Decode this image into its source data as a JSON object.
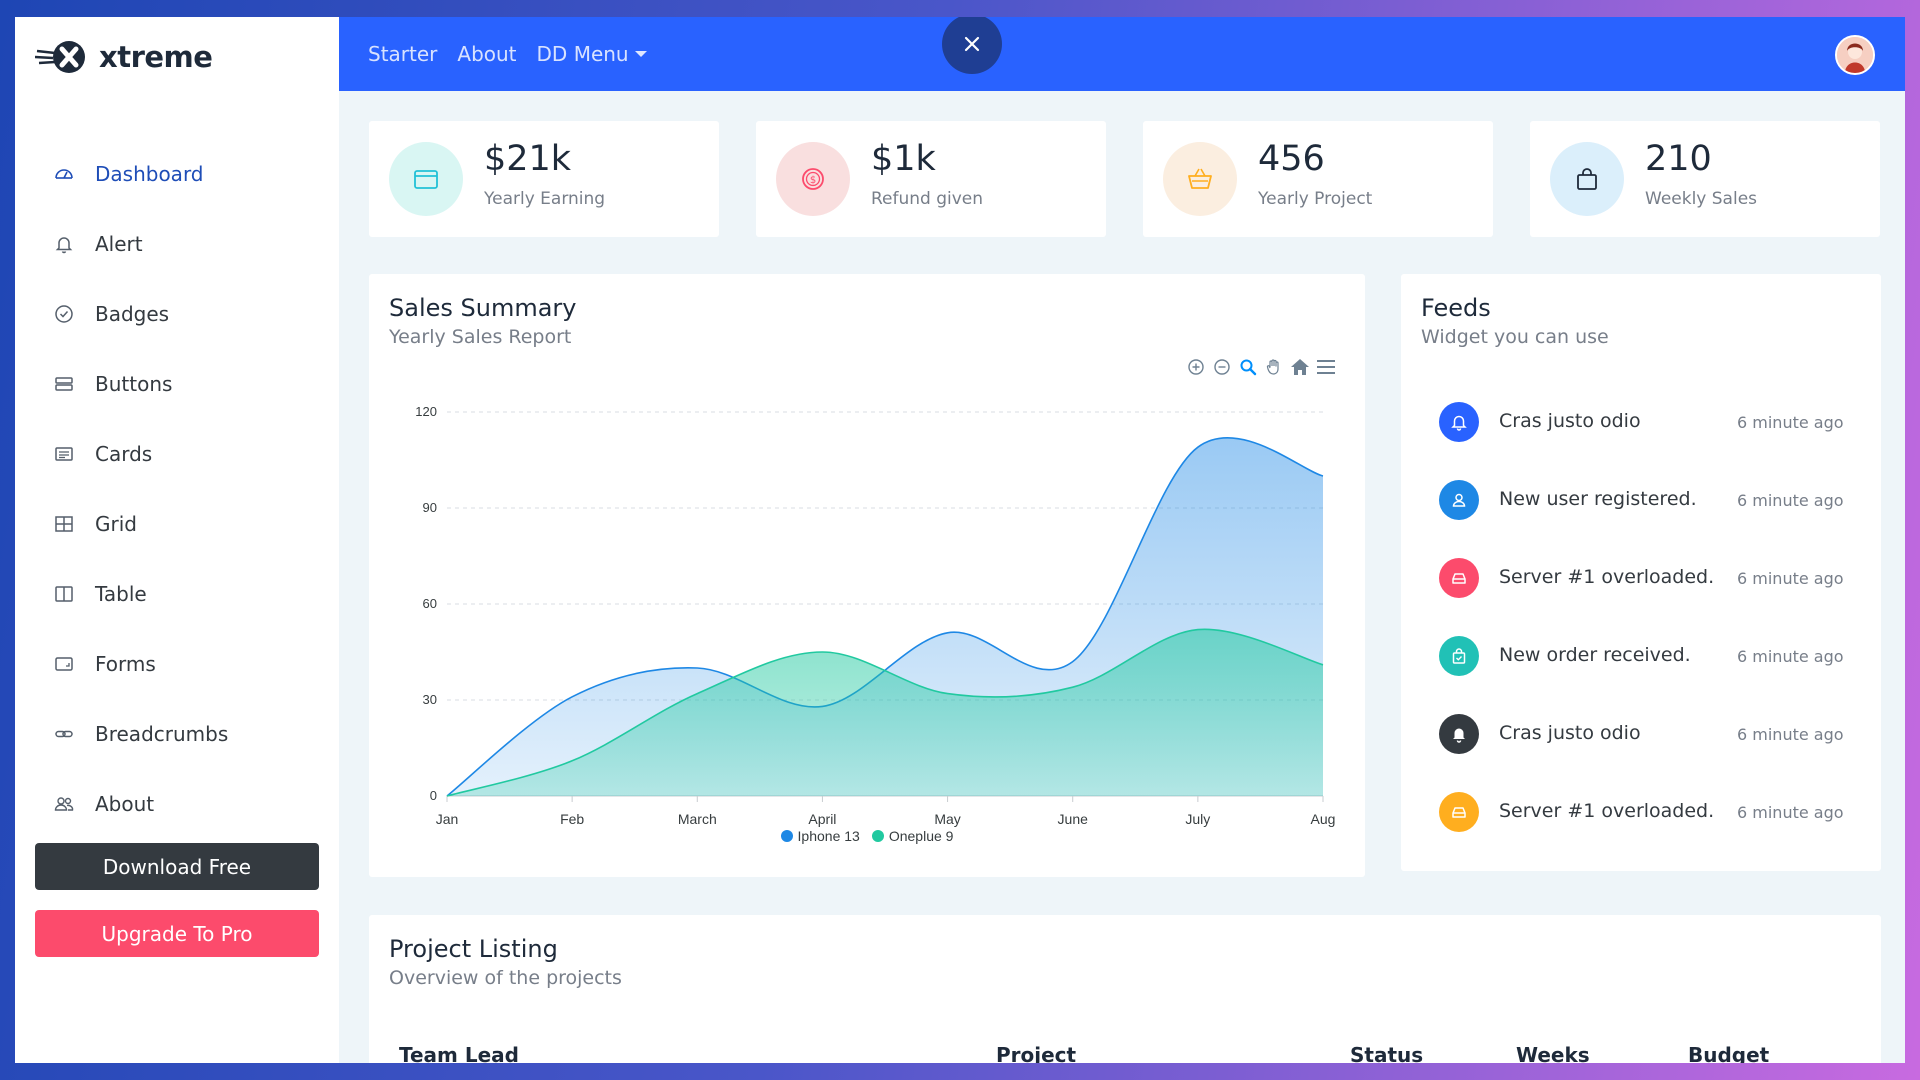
{
  "brand": {
    "name": "xtreme"
  },
  "sidebar": {
    "items": [
      {
        "label": "Dashboard",
        "icon": "speedometer-icon",
        "active": true
      },
      {
        "label": "Alert",
        "icon": "bell-icon"
      },
      {
        "label": "Badges",
        "icon": "patch-check-icon"
      },
      {
        "label": "Buttons",
        "icon": "hdd-stack-icon"
      },
      {
        "label": "Cards",
        "icon": "card-text-icon"
      },
      {
        "label": "Grid",
        "icon": "columns-icon"
      },
      {
        "label": "Table",
        "icon": "layout-split-icon"
      },
      {
        "label": "Forms",
        "icon": "textarea-icon"
      },
      {
        "label": "Breadcrumbs",
        "icon": "link-icon"
      },
      {
        "label": "About",
        "icon": "people-icon"
      }
    ],
    "download_label": "Download Free",
    "upgrade_label": "Upgrade To Pro"
  },
  "topbar": {
    "links": [
      "Starter",
      "About",
      "DD Menu"
    ]
  },
  "stats": [
    {
      "value": "$21k",
      "label": "Yearly Earning",
      "icon": "wallet-icon",
      "color": "#21c1d6",
      "bg": "#d9f6f3"
    },
    {
      "value": "$1k",
      "label": "Refund given",
      "icon": "coin-icon",
      "color": "#fc4b6c",
      "bg": "#f9dfdf"
    },
    {
      "value": "456",
      "label": "Yearly Project",
      "icon": "basket-icon",
      "color": "#ffae1f",
      "bg": "#fbeee0"
    },
    {
      "value": "210",
      "label": "Weekly Sales",
      "icon": "bag-icon",
      "color": "#1e2a3a",
      "bg": "#dbeffb"
    }
  ],
  "sales": {
    "title": "Sales Summary",
    "subtitle": "Yearly Sales Report"
  },
  "chart_data": {
    "type": "area",
    "x": [
      "Jan",
      "Feb",
      "March",
      "April",
      "May",
      "June",
      "July",
      "Aug"
    ],
    "ylim": [
      0,
      120
    ],
    "yticks": [
      0,
      30,
      60,
      90,
      120
    ],
    "grid": true,
    "legend": "bottom-center",
    "series": [
      {
        "name": "Iphone 13",
        "color": "#1e88e5",
        "values": [
          0,
          31,
          40,
          28,
          51,
          42,
          109,
          100
        ]
      },
      {
        "name": "Oneplue 9",
        "color": "#21c9a0",
        "values": [
          0,
          11,
          32,
          45,
          32,
          34,
          52,
          41
        ]
      }
    ]
  },
  "feeds": {
    "title": "Feeds",
    "subtitle": "Widget you can use",
    "items": [
      {
        "text": "Cras justo odio",
        "time": "6 minute ago",
        "icon": "bell-icon",
        "color": "#2962ff"
      },
      {
        "text": "New user registered.",
        "time": "6 minute ago",
        "icon": "person-icon",
        "color": "#1e88e5"
      },
      {
        "text": "Server #1 overloaded.",
        "time": "6 minute ago",
        "icon": "hdd-icon",
        "color": "#fc4b6c"
      },
      {
        "text": "New order received.",
        "time": "6 minute ago",
        "icon": "bag-check-icon",
        "color": "#21c1b6"
      },
      {
        "text": "Cras justo odio",
        "time": "6 minute ago",
        "icon": "bell-icon",
        "color": "#343a40"
      },
      {
        "text": "Server #1 overloaded.",
        "time": "6 minute ago",
        "icon": "hdd-icon",
        "color": "#ffae1f"
      }
    ]
  },
  "projects": {
    "title": "Project Listing",
    "subtitle": "Overview of the projects",
    "columns": [
      "Team Lead",
      "Project",
      "Status",
      "Weeks",
      "Budget"
    ]
  }
}
